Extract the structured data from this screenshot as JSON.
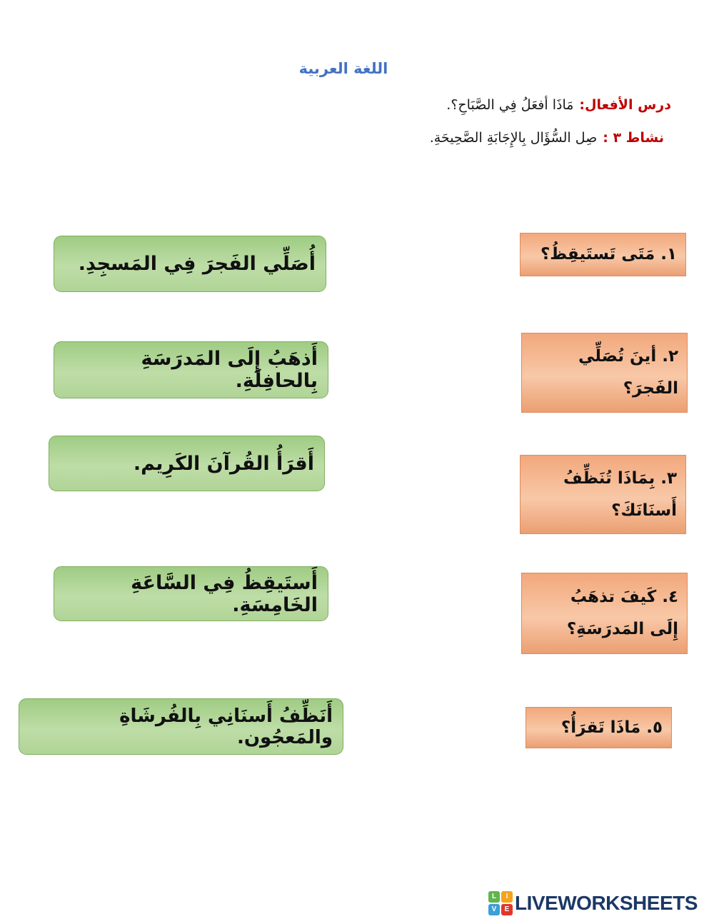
{
  "title": {
    "text": "اللغة العربية",
    "color": "#4472c4"
  },
  "instructions": [
    {
      "label": "درس الأفعال:",
      "text": "مَاذَا أفعَلُ فِي الصَّبَاحِ؟."
    },
    {
      "label": "نشاط ٣ :",
      "text": "صِل السُّؤَال بِالإِجَابَةِ الصَّحِيحَةِ."
    }
  ],
  "answers": [
    "أُصَلِّي الفَجرَ فِي المَسجِدِ.",
    "أَذهَبُ إِلَى المَدرَسَةِ بِالحافِلَةِ.",
    "أَقرَأُ القُرآنَ الكَرِيم.",
    "أَستَيقِظُ فِي السَّاعَةِ الخَامِسَةِ.",
    "أَنَظِّفُ أَسنَانِي بِالفُرشَاةِ والمَعجُون."
  ],
  "questions": [
    "١. مَتَى تَستَيقِظُ؟",
    "٢. أينَ تُصَلِّي\nالفَجرَ؟",
    "٣. بِمَاذَا تُنَظِّفُ\nأَسنَانَكَ؟",
    "٤. كَيفَ تذهَبُ\nإِلَى المَدرَسَةِ؟",
    "٥. مَاذَا تَقرَأُ؟"
  ],
  "footer": {
    "brand": "LIVEWORKSHEETS",
    "tiles": [
      {
        "ch": "L",
        "style": "background:#61b54b"
      },
      {
        "ch": "I",
        "style": "background:#f6a21d"
      },
      {
        "ch": "V",
        "style": "background:#3b9fd8"
      },
      {
        "ch": "E",
        "style": "background:#e2362b"
      }
    ]
  },
  "colors": {
    "title_blue": "#4472c4",
    "instruction_red": "#c00000",
    "answer_green_fill": "#b0d496",
    "answer_green_border": "#7fae62",
    "question_orange_fill": "#f4b183",
    "question_orange_border": "#dd8c5d",
    "brand_navy": "#1b3866"
  }
}
